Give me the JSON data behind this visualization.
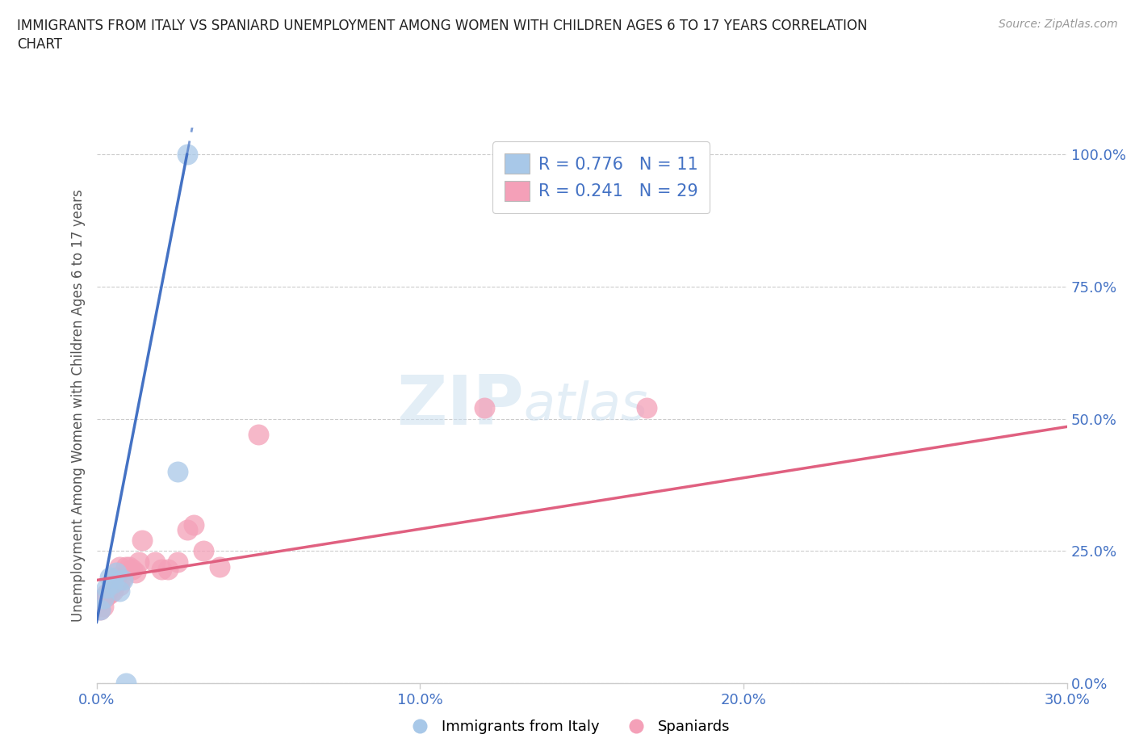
{
  "title_line1": "IMMIGRANTS FROM ITALY VS SPANIARD UNEMPLOYMENT AMONG WOMEN WITH CHILDREN AGES 6 TO 17 YEARS CORRELATION",
  "title_line2": "CHART",
  "source": "Source: ZipAtlas.com",
  "ylabel": "Unemployment Among Women with Children Ages 6 to 17 years",
  "xlim": [
    0.0,
    0.3
  ],
  "ylim": [
    0.0,
    1.05
  ],
  "yticks": [
    0.0,
    0.25,
    0.5,
    0.75,
    1.0
  ],
  "ytick_labels": [
    "0.0%",
    "25.0%",
    "50.0%",
    "75.0%",
    "100.0%"
  ],
  "xticks": [
    0.0,
    0.1,
    0.2,
    0.3
  ],
  "xtick_labels": [
    "0.0%",
    "10.0%",
    "20.0%",
    "30.0%"
  ],
  "italy_R": 0.776,
  "italy_N": 11,
  "spain_R": 0.241,
  "spain_N": 29,
  "italy_color": "#a8c8e8",
  "italy_line_color": "#4472c4",
  "spain_color": "#f4a0b8",
  "spain_line_color": "#e06080",
  "bg_color": "#ffffff",
  "grid_color": "#cccccc",
  "title_color": "#222222",
  "axis_tick_color": "#4472c4",
  "ylabel_color": "#555555",
  "source_color": "#999999",
  "italy_points_x": [
    0.001,
    0.002,
    0.003,
    0.004,
    0.005,
    0.006,
    0.007,
    0.008,
    0.009,
    0.025,
    0.028
  ],
  "italy_points_y": [
    0.14,
    0.16,
    0.18,
    0.2,
    0.19,
    0.21,
    0.175,
    0.195,
    0.0,
    0.4,
    1.0
  ],
  "spain_points_x": [
    0.001,
    0.001,
    0.002,
    0.003,
    0.003,
    0.004,
    0.005,
    0.006,
    0.006,
    0.007,
    0.007,
    0.008,
    0.009,
    0.01,
    0.011,
    0.012,
    0.013,
    0.014,
    0.018,
    0.02,
    0.022,
    0.025,
    0.028,
    0.03,
    0.033,
    0.038,
    0.05,
    0.12,
    0.17
  ],
  "spain_points_y": [
    0.14,
    0.155,
    0.145,
    0.165,
    0.17,
    0.17,
    0.175,
    0.19,
    0.2,
    0.185,
    0.22,
    0.2,
    0.22,
    0.22,
    0.215,
    0.21,
    0.23,
    0.27,
    0.23,
    0.215,
    0.215,
    0.23,
    0.29,
    0.3,
    0.25,
    0.22,
    0.47,
    0.52,
    0.52
  ],
  "italy_line_x0": 0.0,
  "italy_line_y0": 0.115,
  "italy_line_x1": 0.028,
  "italy_line_y1": 1.0,
  "italy_line_dash_x1": 0.025,
  "italy_line_dash_x2": 0.037,
  "spain_line_x0": 0.0,
  "spain_line_y0": 0.195,
  "spain_line_x1": 0.3,
  "spain_line_y1": 0.485
}
